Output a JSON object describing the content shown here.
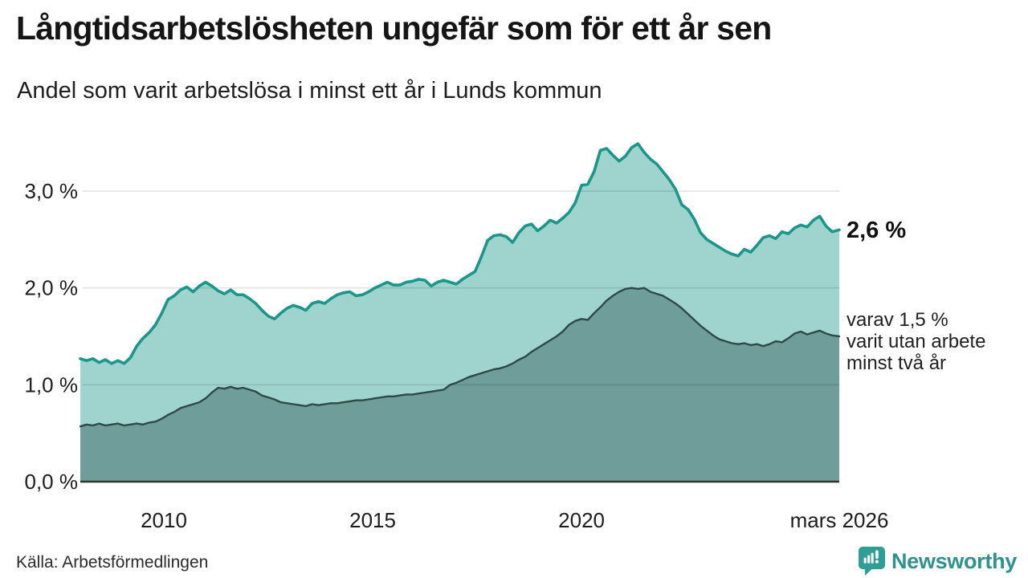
{
  "header": {
    "title": "Långtidsarbetslösheten ungefär som för ett år sen",
    "subtitle": "Andel som varit arbetslösa i minst ett år i Lunds kommun"
  },
  "annotations": {
    "total_label": "2,6 %",
    "sub_label_lines": [
      "varav 1,5 %",
      "varit utan arbete",
      "minst två år"
    ]
  },
  "footer": {
    "source": "Källa: Arbetsförmedlingen",
    "brand": "Newsworthy"
  },
  "colors": {
    "line_total": "#1b968a",
    "fill_total": "#9fd4ce",
    "line_two_years": "#2e4a47",
    "fill_two_years": "#6f9d99",
    "gridline": "rgba(0,0,0,0.11)",
    "baseline": "#333333",
    "tick_text": "#1d1d1d",
    "brand_teal": "#2f9e94"
  },
  "chart_data": {
    "type": "area",
    "title": "Långtidsarbetslösheten ungefär som för ett år sen",
    "subtitle": "Andel som varit arbetslösa i minst ett år i Lunds kommun",
    "xlabel": "",
    "ylabel": "",
    "xlim": [
      2008.0,
      2026.17
    ],
    "ylim": [
      0,
      3.73
    ],
    "grid": true,
    "legend_position": "none",
    "x_ticks": [
      {
        "value": 2010,
        "label": "2010"
      },
      {
        "value": 2015,
        "label": "2015"
      },
      {
        "value": 2020,
        "label": "2020"
      },
      {
        "value": 2026.17,
        "label": "mars 2026"
      }
    ],
    "y_ticks": [
      {
        "value": 0,
        "label": "0,0 %"
      },
      {
        "value": 1,
        "label": "1,0 %"
      },
      {
        "value": 2,
        "label": "2,0 %"
      },
      {
        "value": 3,
        "label": "3,0 %"
      }
    ],
    "x": [
      2008.0,
      2008.15,
      2008.3,
      2008.45,
      2008.6,
      2008.75,
      2008.9,
      2009.05,
      2009.2,
      2009.35,
      2009.5,
      2009.65,
      2009.8,
      2009.95,
      2010.1,
      2010.25,
      2010.4,
      2010.55,
      2010.7,
      2010.85,
      2011.0,
      2011.15,
      2011.3,
      2011.45,
      2011.6,
      2011.75,
      2011.9,
      2012.05,
      2012.2,
      2012.35,
      2012.5,
      2012.65,
      2012.8,
      2012.95,
      2013.1,
      2013.25,
      2013.4,
      2013.55,
      2013.7,
      2013.85,
      2014.0,
      2014.15,
      2014.3,
      2014.45,
      2014.6,
      2014.75,
      2014.9,
      2015.05,
      2015.2,
      2015.35,
      2015.5,
      2015.65,
      2015.8,
      2015.95,
      2016.1,
      2016.25,
      2016.4,
      2016.55,
      2016.7,
      2016.85,
      2017.0,
      2017.15,
      2017.3,
      2017.45,
      2017.6,
      2017.75,
      2017.9,
      2018.05,
      2018.2,
      2018.35,
      2018.5,
      2018.65,
      2018.8,
      2018.95,
      2019.1,
      2019.25,
      2019.4,
      2019.55,
      2019.7,
      2019.85,
      2020.0,
      2020.15,
      2020.3,
      2020.45,
      2020.6,
      2020.75,
      2020.9,
      2021.05,
      2021.2,
      2021.35,
      2021.5,
      2021.65,
      2021.8,
      2021.95,
      2022.1,
      2022.25,
      2022.4,
      2022.55,
      2022.7,
      2022.85,
      2023.0,
      2023.15,
      2023.3,
      2023.45,
      2023.6,
      2023.75,
      2023.9,
      2024.05,
      2024.2,
      2024.35,
      2024.5,
      2024.65,
      2024.8,
      2024.95,
      2025.1,
      2025.25,
      2025.4,
      2025.55,
      2025.7,
      2025.85,
      2026.0,
      2026.17
    ],
    "series": [
      {
        "name": "Arbetslösa minst ett år",
        "end_value": "2,6 %",
        "values": [
          1.27,
          1.25,
          1.27,
          1.23,
          1.26,
          1.22,
          1.25,
          1.22,
          1.28,
          1.4,
          1.48,
          1.54,
          1.62,
          1.74,
          1.88,
          1.92,
          1.98,
          2.01,
          1.96,
          2.02,
          2.06,
          2.02,
          1.97,
          1.94,
          1.98,
          1.93,
          1.93,
          1.89,
          1.84,
          1.77,
          1.71,
          1.68,
          1.74,
          1.79,
          1.82,
          1.8,
          1.77,
          1.84,
          1.86,
          1.84,
          1.89,
          1.93,
          1.95,
          1.96,
          1.92,
          1.93,
          1.96,
          2.0,
          2.03,
          2.06,
          2.03,
          2.03,
          2.06,
          2.07,
          2.09,
          2.08,
          2.02,
          2.06,
          2.08,
          2.06,
          2.04,
          2.09,
          2.13,
          2.17,
          2.32,
          2.49,
          2.54,
          2.55,
          2.53,
          2.47,
          2.57,
          2.64,
          2.66,
          2.59,
          2.64,
          2.7,
          2.67,
          2.72,
          2.78,
          2.88,
          3.06,
          3.07,
          3.2,
          3.42,
          3.44,
          3.37,
          3.31,
          3.36,
          3.45,
          3.49,
          3.4,
          3.33,
          3.28,
          3.2,
          3.12,
          3.02,
          2.86,
          2.81,
          2.71,
          2.57,
          2.5,
          2.46,
          2.42,
          2.38,
          2.35,
          2.33,
          2.4,
          2.37,
          2.44,
          2.52,
          2.54,
          2.51,
          2.58,
          2.56,
          2.62,
          2.65,
          2.63,
          2.7,
          2.74,
          2.64,
          2.58,
          2.6
        ]
      },
      {
        "name": "Varav utan arbete minst två år",
        "end_value": "1,5 %",
        "values": [
          0.57,
          0.59,
          0.58,
          0.6,
          0.58,
          0.59,
          0.6,
          0.58,
          0.59,
          0.6,
          0.59,
          0.61,
          0.62,
          0.65,
          0.69,
          0.72,
          0.76,
          0.78,
          0.8,
          0.82,
          0.86,
          0.92,
          0.97,
          0.96,
          0.98,
          0.96,
          0.97,
          0.95,
          0.93,
          0.89,
          0.87,
          0.85,
          0.82,
          0.81,
          0.8,
          0.79,
          0.78,
          0.8,
          0.79,
          0.8,
          0.81,
          0.81,
          0.82,
          0.83,
          0.84,
          0.84,
          0.85,
          0.86,
          0.87,
          0.88,
          0.88,
          0.89,
          0.9,
          0.9,
          0.91,
          0.92,
          0.93,
          0.94,
          0.95,
          1.0,
          1.02,
          1.05,
          1.08,
          1.1,
          1.12,
          1.14,
          1.16,
          1.17,
          1.19,
          1.22,
          1.26,
          1.29,
          1.34,
          1.38,
          1.42,
          1.46,
          1.5,
          1.55,
          1.62,
          1.66,
          1.68,
          1.67,
          1.74,
          1.8,
          1.87,
          1.92,
          1.96,
          1.99,
          2.0,
          1.99,
          2.0,
          1.96,
          1.94,
          1.92,
          1.88,
          1.84,
          1.79,
          1.73,
          1.67,
          1.61,
          1.56,
          1.51,
          1.47,
          1.45,
          1.43,
          1.42,
          1.43,
          1.41,
          1.42,
          1.4,
          1.42,
          1.45,
          1.44,
          1.48,
          1.53,
          1.55,
          1.52,
          1.54,
          1.56,
          1.53,
          1.51,
          1.5
        ]
      }
    ]
  }
}
